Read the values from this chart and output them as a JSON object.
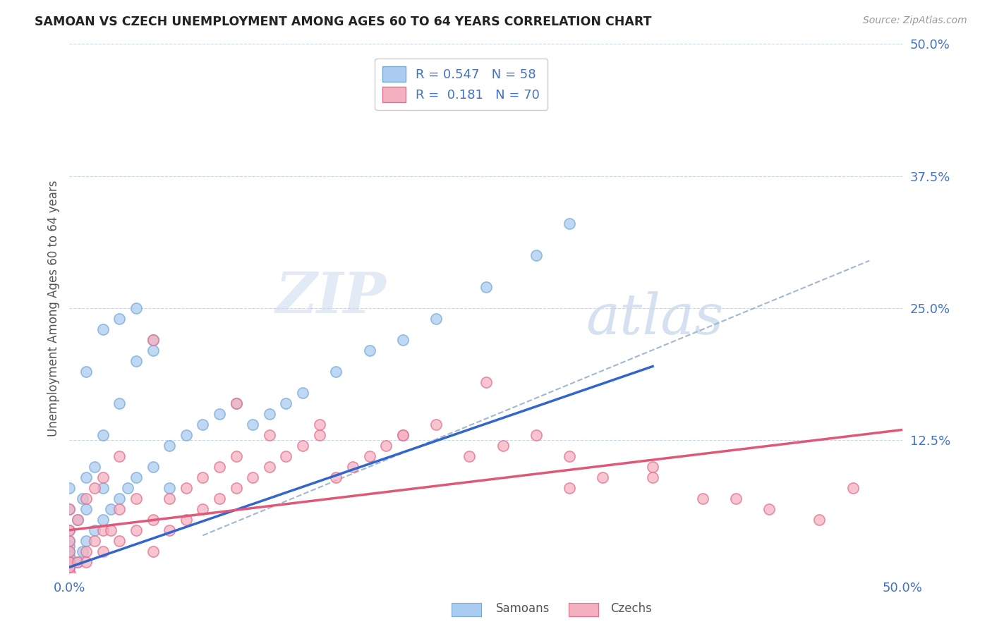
{
  "title": "SAMOAN VS CZECH UNEMPLOYMENT AMONG AGES 60 TO 64 YEARS CORRELATION CHART",
  "source": "Source: ZipAtlas.com",
  "ylabel": "Unemployment Among Ages 60 to 64 years",
  "ytick_values": [
    0.0,
    0.125,
    0.25,
    0.375,
    0.5
  ],
  "ytick_labels": [
    "0.0%",
    "12.5%",
    "25.0%",
    "37.5%",
    "50.0%"
  ],
  "xlim": [
    0.0,
    0.5
  ],
  "ylim": [
    0.0,
    0.5
  ],
  "samoan_color": "#aaccf0",
  "samoan_edge_color": "#7aaad8",
  "czech_color": "#f5b0c0",
  "czech_edge_color": "#e07090",
  "samoan_line_color": "#3366cc",
  "czech_line_color": "#e05878",
  "gray_dash_color": "#a0b8d0",
  "background_color": "#ffffff",
  "grid_color": "#c8d8e8",
  "watermark_zip": "ZIP",
  "watermark_atlas": "atlas",
  "samoan_x": [
    0.0,
    0.0,
    0.0,
    0.0,
    0.0,
    0.0,
    0.0,
    0.0,
    0.0,
    0.0,
    0.0,
    0.0,
    0.0,
    0.0,
    0.0,
    0.0,
    0.005,
    0.005,
    0.008,
    0.008,
    0.01,
    0.01,
    0.01,
    0.015,
    0.015,
    0.02,
    0.02,
    0.02,
    0.025,
    0.03,
    0.03,
    0.035,
    0.04,
    0.04,
    0.05,
    0.05,
    0.06,
    0.06,
    0.07,
    0.08,
    0.09,
    0.1,
    0.11,
    0.12,
    0.13,
    0.14,
    0.16,
    0.18,
    0.2,
    0.22,
    0.25,
    0.28,
    0.3,
    0.01,
    0.02,
    0.03,
    0.04,
    0.05
  ],
  "samoan_y": [
    0.0,
    0.0,
    0.0,
    0.0,
    0.005,
    0.005,
    0.01,
    0.01,
    0.015,
    0.015,
    0.02,
    0.025,
    0.03,
    0.04,
    0.06,
    0.08,
    0.01,
    0.05,
    0.02,
    0.07,
    0.03,
    0.06,
    0.09,
    0.04,
    0.1,
    0.05,
    0.08,
    0.13,
    0.06,
    0.07,
    0.16,
    0.08,
    0.09,
    0.2,
    0.1,
    0.22,
    0.12,
    0.08,
    0.13,
    0.14,
    0.15,
    0.16,
    0.14,
    0.15,
    0.16,
    0.17,
    0.19,
    0.21,
    0.22,
    0.24,
    0.27,
    0.3,
    0.33,
    0.19,
    0.23,
    0.24,
    0.25,
    0.21
  ],
  "czech_x": [
    0.0,
    0.0,
    0.0,
    0.0,
    0.0,
    0.0,
    0.0,
    0.0,
    0.0,
    0.0,
    0.0,
    0.0,
    0.005,
    0.005,
    0.01,
    0.01,
    0.01,
    0.015,
    0.015,
    0.02,
    0.02,
    0.02,
    0.025,
    0.03,
    0.03,
    0.03,
    0.04,
    0.04,
    0.05,
    0.05,
    0.05,
    0.06,
    0.06,
    0.07,
    0.07,
    0.08,
    0.08,
    0.09,
    0.09,
    0.1,
    0.1,
    0.11,
    0.12,
    0.12,
    0.13,
    0.14,
    0.15,
    0.16,
    0.17,
    0.18,
    0.19,
    0.2,
    0.22,
    0.24,
    0.26,
    0.28,
    0.3,
    0.32,
    0.35,
    0.38,
    0.4,
    0.42,
    0.45,
    0.47,
    0.1,
    0.15,
    0.2,
    0.25,
    0.3,
    0.35
  ],
  "czech_y": [
    0.0,
    0.0,
    0.0,
    0.0,
    0.005,
    0.005,
    0.01,
    0.01,
    0.02,
    0.03,
    0.04,
    0.06,
    0.01,
    0.05,
    0.01,
    0.02,
    0.07,
    0.03,
    0.08,
    0.02,
    0.04,
    0.09,
    0.04,
    0.03,
    0.06,
    0.11,
    0.04,
    0.07,
    0.02,
    0.05,
    0.22,
    0.04,
    0.07,
    0.05,
    0.08,
    0.06,
    0.09,
    0.07,
    0.1,
    0.08,
    0.11,
    0.09,
    0.1,
    0.13,
    0.11,
    0.12,
    0.13,
    0.09,
    0.1,
    0.11,
    0.12,
    0.13,
    0.14,
    0.11,
    0.12,
    0.13,
    0.08,
    0.09,
    0.1,
    0.07,
    0.07,
    0.06,
    0.05,
    0.08,
    0.16,
    0.14,
    0.13,
    0.18,
    0.11,
    0.09
  ],
  "samoan_line_x": [
    0.0,
    0.35
  ],
  "samoan_line_y": [
    0.005,
    0.195
  ],
  "czech_line_x": [
    0.0,
    0.5
  ],
  "czech_line_y": [
    0.04,
    0.135
  ],
  "gray_line_x": [
    0.08,
    0.48
  ],
  "gray_line_y": [
    0.035,
    0.295
  ]
}
